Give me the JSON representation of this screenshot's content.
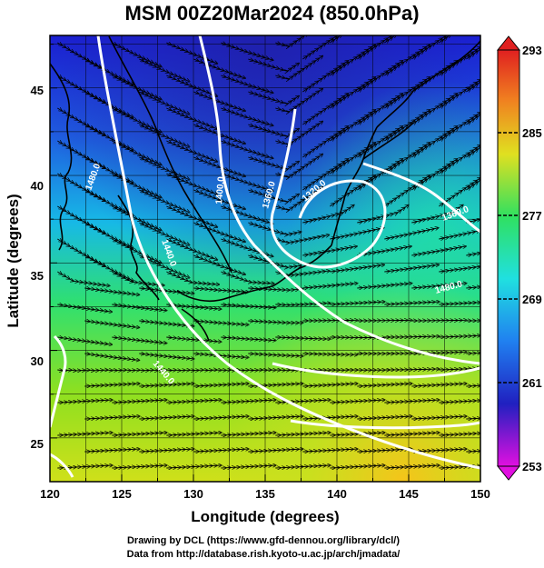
{
  "title": "MSM 00Z20Mar2024 (850.0hPa)",
  "xlabel": "Longitude (degrees)",
  "ylabel": "Latitude  (degrees)",
  "x_ticks": [
    "120",
    "125",
    "130",
    "135",
    "140",
    "145",
    "150"
  ],
  "y_ticks": [
    "25",
    "30",
    "35",
    "40",
    "45"
  ],
  "colorbar_ticks": [
    "293",
    "285",
    "277",
    "269",
    "261",
    "253"
  ],
  "contour_labels": [
    "1480.0",
    "1440.0",
    "1400.0",
    "1360.0",
    "1320.0",
    "1360.0",
    "1480.0",
    "1440.0"
  ],
  "credits": {
    "line1": "Drawing by DCL (https://www.gfd-dennou.org/library/dcl/)",
    "line2": "Data from http://database.rish.kyoto-u.ac.jp/arch/jmadata/"
  },
  "colors": {
    "cold": "#1010c0",
    "cool": "#10a0f0",
    "mid": "#20e080",
    "warm": "#b0e020",
    "hot": "#f0b020",
    "max": "#e02020",
    "min": "#e010e0",
    "contour": "#ffffff",
    "coast": "#000000"
  },
  "chart_data": {
    "type": "map",
    "x_range": [
      120,
      150
    ],
    "y_range": [
      22.5,
      48
    ],
    "colorbar_range": [
      253,
      293
    ],
    "colorbar_label_values": [
      293,
      285,
      277,
      269,
      261,
      253
    ],
    "contours": "geopotential height (white lines)",
    "shading": "temperature (K)",
    "vectors": "wind streamlines"
  }
}
